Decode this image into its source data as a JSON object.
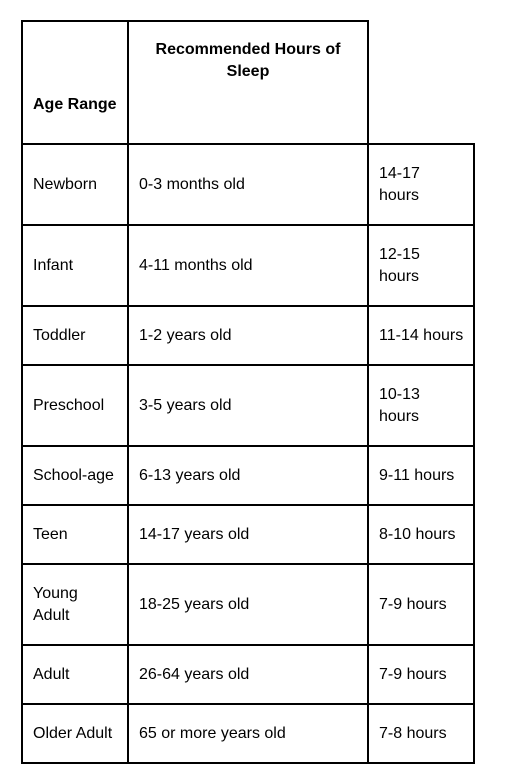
{
  "table": {
    "headers": {
      "age_range": "Age Range",
      "recommended": "Recommended Hours of Sleep",
      "hours": ""
    },
    "rows": [
      {
        "group": "Newborn",
        "age": "0-3 months old",
        "hours": "14-17 hours"
      },
      {
        "group": "Infant",
        "age": "4-11 months old",
        "hours": "12-15 hours"
      },
      {
        "group": "Toddler",
        "age": "1-2 years old",
        "hours": "11-14 hours"
      },
      {
        "group": "Preschool",
        "age": "3-5 years old",
        "hours": "10-13 hours"
      },
      {
        "group": "School-age",
        "age": "6-13 years old",
        "hours": "9-11 hours"
      },
      {
        "group": "Teen",
        "age": "14-17 years old",
        "hours": "8-10 hours"
      },
      {
        "group": "Young Adult",
        "age": "18-25 years old",
        "hours": "7-9 hours"
      },
      {
        "group": "Adult",
        "age": "26-64 years old",
        "hours": "7-9 hours"
      },
      {
        "group": "Older Adult",
        "age": "65 or more years old",
        "hours": "7-8 hours"
      }
    ]
  }
}
